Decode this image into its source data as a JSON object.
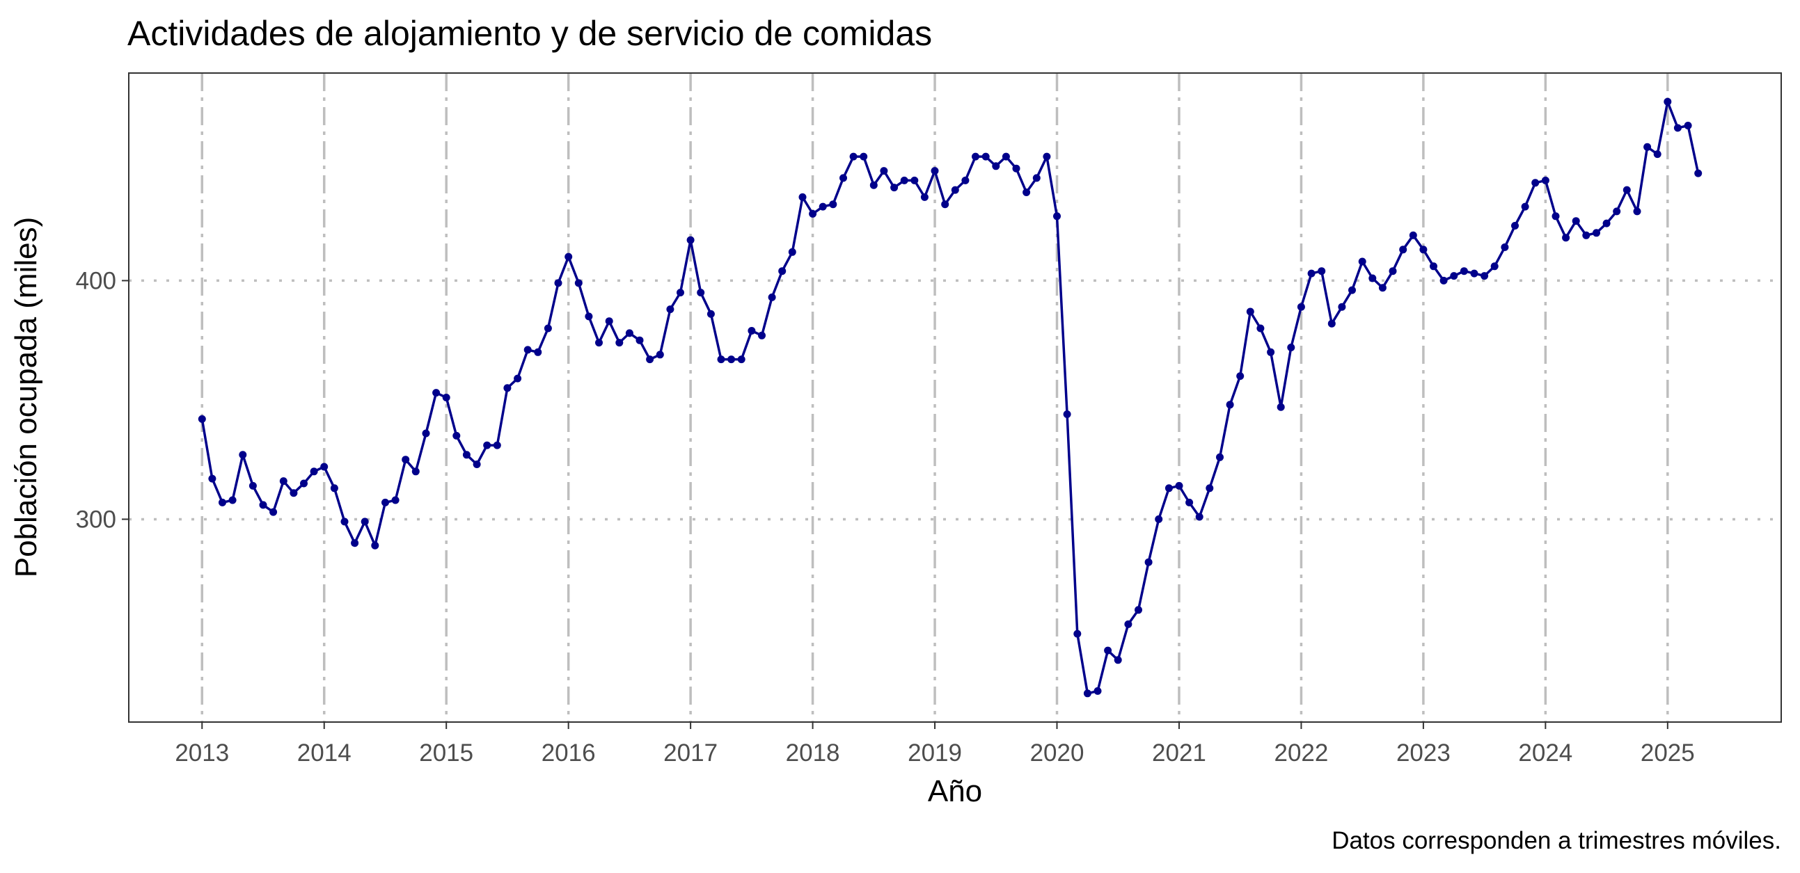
{
  "chart_data": {
    "type": "line",
    "title": "Actividades de alojamiento y de servicio de comidas",
    "xlabel": "Año",
    "ylabel": "Población ocupada (miles)",
    "caption": "Datos corresponden a trimestres móviles.",
    "xlim": [
      2012.4,
      2025.93
    ],
    "ylim": [
      215,
      487
    ],
    "x_ticks": [
      2013,
      2014,
      2015,
      2016,
      2017,
      2018,
      2019,
      2020,
      2021,
      2022,
      2023,
      2024,
      2025
    ],
    "x_tick_labels": [
      "2013",
      "2014",
      "2015",
      "2016",
      "2017",
      "2018",
      "2019",
      "2020",
      "2021",
      "2022",
      "2023",
      "2024",
      "2025"
    ],
    "y_ticks": [
      300,
      400
    ],
    "y_tick_labels": [
      "300",
      "400"
    ],
    "grid": true,
    "line_color": "#00008B",
    "series": [
      {
        "x_start": 2013,
        "step_months": 1,
        "values": [
          342,
          317,
          307,
          308,
          327,
          314,
          306,
          303,
          316,
          311,
          315,
          320,
          322,
          313,
          299,
          290,
          299,
          289,
          307,
          308,
          325,
          320,
          336,
          353,
          351,
          335,
          327,
          323,
          331,
          331,
          355,
          359,
          371,
          370,
          380,
          399,
          410,
          399,
          385,
          374,
          383,
          374,
          378,
          375,
          367,
          369,
          388,
          395,
          417,
          395,
          386,
          367,
          367,
          367,
          379,
          377,
          393,
          404,
          412,
          435,
          428,
          431,
          432,
          443,
          452,
          452,
          440,
          446,
          439,
          442,
          442,
          435,
          446,
          432,
          438,
          442,
          452,
          452,
          448,
          452,
          447,
          437,
          443,
          452,
          427,
          344,
          252,
          227,
          228,
          245,
          241,
          256,
          262,
          282,
          300,
          313,
          314,
          307,
          301,
          313,
          326,
          348,
          360,
          387,
          380,
          370,
          347,
          372,
          389,
          403,
          404,
          382,
          389,
          396,
          408,
          401,
          397,
          404,
          413,
          419,
          413,
          406,
          400,
          402,
          404,
          403,
          402,
          406,
          414,
          423,
          431,
          441,
          442,
          427,
          418,
          425,
          419,
          420,
          424,
          429,
          438,
          429,
          456,
          453,
          475,
          464,
          465,
          445
        ]
      }
    ]
  }
}
